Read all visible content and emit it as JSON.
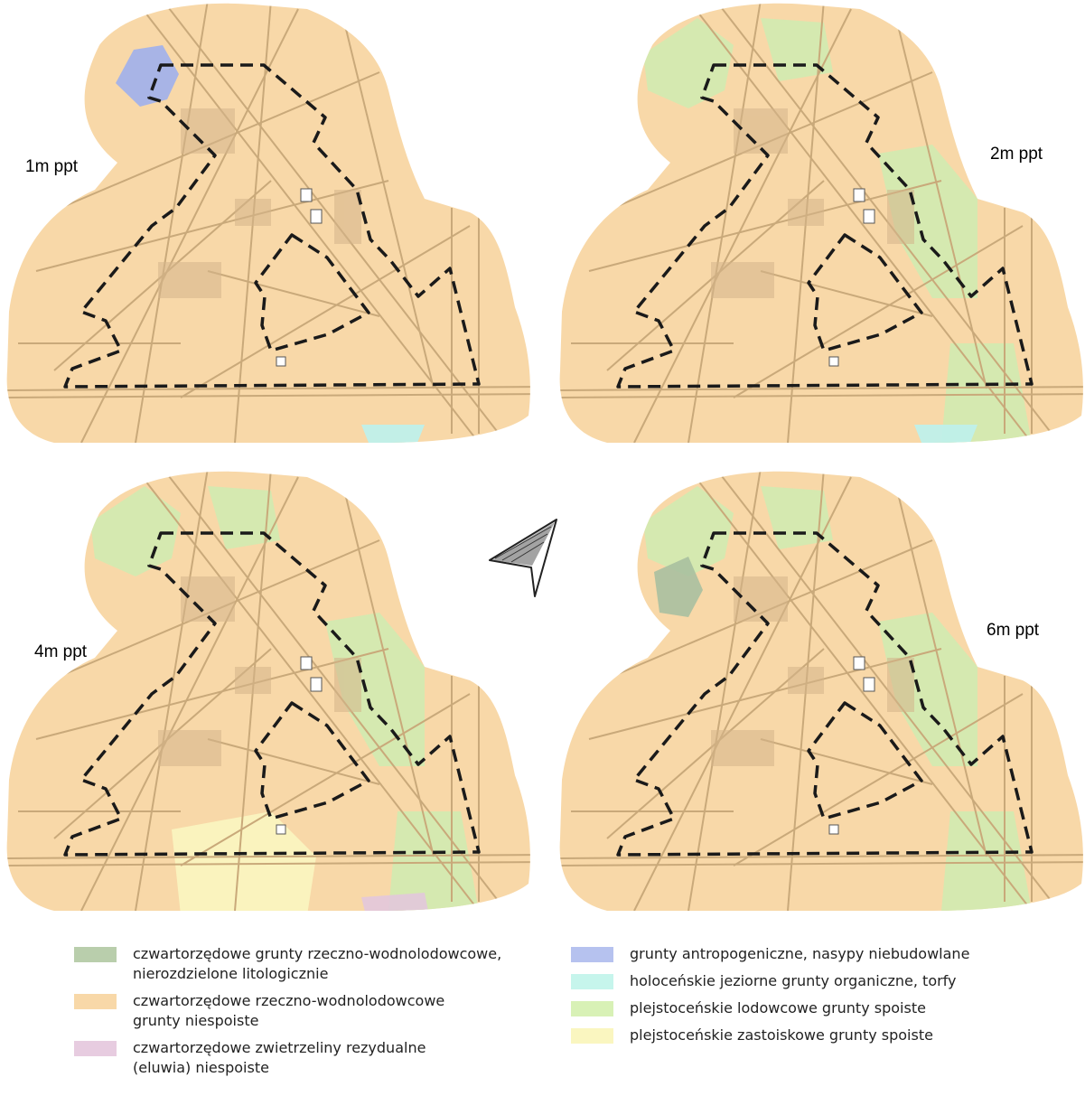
{
  "panels": [
    {
      "label": "1m ppt",
      "overlays": [
        "antropogeniczne",
        "torfy"
      ]
    },
    {
      "label": "2m ppt",
      "overlays": [
        "lodowcowe",
        "torfy"
      ]
    },
    {
      "label": "4m ppt",
      "overlays": [
        "lodowcowe",
        "zastoiskowe",
        "eluwia"
      ]
    },
    {
      "label": "6m ppt",
      "overlays": [
        "lodowcowe",
        "rzeczno-nierozdzielone"
      ]
    }
  ],
  "north_arrow": {
    "icon": "north-arrow-icon"
  },
  "legend": {
    "left": [
      {
        "color": "#b9ceac",
        "text": "czwartorzędowe grunty rzeczno-wodnolodowcowe,\nnierozdzielone litologicznie"
      },
      {
        "color": "#f8d8a8",
        "text": "czwartorzędowe rzeczno-wodnolodowcowe\ngrunty niespoiste"
      },
      {
        "color": "#e7cce0",
        "text": "czwartorzędowe zwietrzeliny rezydualne\n(eluwia) niespoiste"
      }
    ],
    "right": [
      {
        "color": "#b6c2ef",
        "text": "grunty antropogeniczne, nasypy niebudowlane"
      },
      {
        "color": "#c6f5ec",
        "text": "holoceńskie jeziorne grunty organiczne, torfy"
      },
      {
        "color": "#d8f1b6",
        "text": "plejstoceńskie lodowcowe grunty spoiste"
      },
      {
        "color": "#faf6c0",
        "text": "plejstoceńskie zastoiskowe grunty spoiste"
      }
    ]
  },
  "colors": {
    "base": "#f8d8a8",
    "roads": "#c9a97a",
    "boundary": "#1a1a1a",
    "antropogeniczne": "#9fb0ec",
    "torfy": "#bff0ea",
    "lodowcowe": "#cfecb2",
    "zastoiskowe": "#faf6c0",
    "eluwia": "#e2c8dc",
    "rzeczno-nierozdzielone": "#a9c0a0"
  }
}
